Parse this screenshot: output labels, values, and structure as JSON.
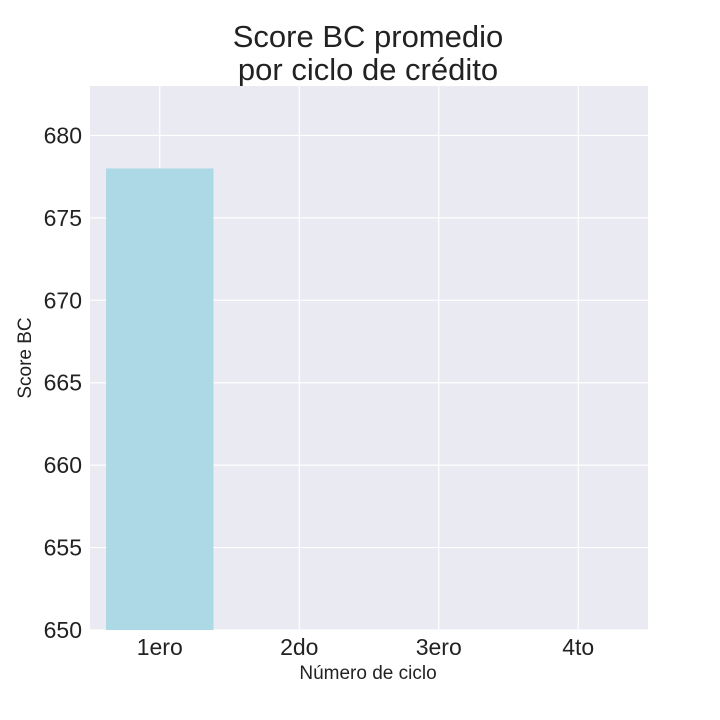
{
  "chart_data": {
    "type": "bar",
    "title_lines": [
      "Score BC promedio",
      "por ciclo de crédito"
    ],
    "xlabel": "Número de ciclo",
    "ylabel": "Score BC",
    "categories": [
      "1ero",
      "2do",
      "3ero",
      "4to"
    ],
    "values": [
      678,
      null,
      null,
      null
    ],
    "ylim": [
      650,
      683
    ],
    "yticks": [
      650,
      655,
      660,
      665,
      670,
      675,
      680
    ],
    "grid": true,
    "legend": "none",
    "colors": {
      "bar": "#add8e6",
      "plot_background": "#eaeaf2",
      "grid": "#ffffff"
    }
  }
}
